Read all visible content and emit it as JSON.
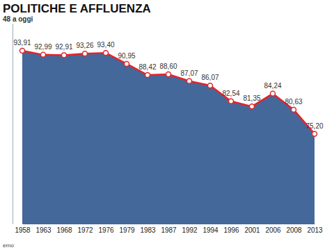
{
  "chart_data": {
    "type": "area",
    "title": "POLITICHE E AFFLUENZA",
    "subtitle": "48 a oggi",
    "categories": [
      "1958",
      "1963",
      "1968",
      "1972",
      "1976",
      "1979",
      "1983",
      "1987",
      "1992",
      "1994",
      "1996",
      "2001",
      "2006",
      "2008",
      "2013"
    ],
    "values": [
      93.91,
      92.99,
      92.91,
      93.26,
      93.4,
      90.95,
      88.42,
      88.6,
      87.07,
      86.07,
      82.54,
      81.35,
      84.24,
      80.63,
      75.2
    ],
    "value_labels": [
      "93,91",
      "92,99",
      "92,91",
      "93,26",
      "93,40",
      "90,95",
      "88,42",
      "88,60",
      "87,07",
      "86,07",
      "82,54",
      "81,35",
      "84,24",
      "80,63",
      "75,20"
    ],
    "color": "#e3242b",
    "marker": "circle",
    "data_labels": true,
    "tick_labels": "x",
    "grid": false,
    "ylim": [
      55,
      100
    ],
    "yticks": [],
    "source": "erno"
  }
}
